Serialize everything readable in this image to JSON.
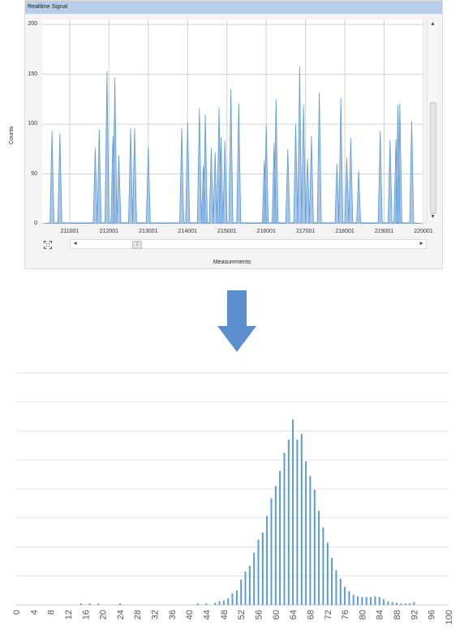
{
  "window": {
    "title": "Realtime Signal"
  },
  "signal_chart": {
    "type": "line",
    "ylabel": "Counts",
    "xlabel": "Measurements",
    "ylim": [
      0,
      205
    ],
    "xlim": [
      210301,
      220001
    ],
    "ytick_labels": [
      "0",
      "50",
      "100",
      "150",
      "200"
    ],
    "xtick_labels": [
      "211001",
      "212001",
      "213001",
      "214001",
      "215001",
      "216001",
      "217001",
      "218001",
      "219001",
      "220001"
    ],
    "grid": true,
    "color": "#5b9bd5",
    "spikes": [
      {
        "x": 210551,
        "y": 93
      },
      {
        "x": 210751,
        "y": 91
      },
      {
        "x": 211651,
        "y": 76
      },
      {
        "x": 211751,
        "y": 95
      },
      {
        "x": 211951,
        "y": 153
      },
      {
        "x": 212101,
        "y": 88
      },
      {
        "x": 212151,
        "y": 147
      },
      {
        "x": 212251,
        "y": 69
      },
      {
        "x": 212551,
        "y": 96
      },
      {
        "x": 212651,
        "y": 96
      },
      {
        "x": 213001,
        "y": 77
      },
      {
        "x": 213851,
        "y": 96
      },
      {
        "x": 214001,
        "y": 102
      },
      {
        "x": 214301,
        "y": 116
      },
      {
        "x": 214401,
        "y": 58
      },
      {
        "x": 214451,
        "y": 110
      },
      {
        "x": 214601,
        "y": 76
      },
      {
        "x": 214701,
        "y": 72
      },
      {
        "x": 214801,
        "y": 117
      },
      {
        "x": 214851,
        "y": 87
      },
      {
        "x": 214951,
        "y": 83
      },
      {
        "x": 215101,
        "y": 135
      },
      {
        "x": 215301,
        "y": 121
      },
      {
        "x": 215951,
        "y": 64
      },
      {
        "x": 216001,
        "y": 99
      },
      {
        "x": 216201,
        "y": 81
      },
      {
        "x": 216251,
        "y": 125
      },
      {
        "x": 216551,
        "y": 75
      },
      {
        "x": 216751,
        "y": 100
      },
      {
        "x": 216851,
        "y": 158
      },
      {
        "x": 216951,
        "y": 119
      },
      {
        "x": 217051,
        "y": 65
      },
      {
        "x": 217151,
        "y": 88
      },
      {
        "x": 217351,
        "y": 132
      },
      {
        "x": 217801,
        "y": 60
      },
      {
        "x": 217901,
        "y": 126
      },
      {
        "x": 218051,
        "y": 66
      },
      {
        "x": 218151,
        "y": 86
      },
      {
        "x": 218351,
        "y": 53
      },
      {
        "x": 218901,
        "y": 93
      },
      {
        "x": 219151,
        "y": 84
      },
      {
        "x": 219301,
        "y": 85
      },
      {
        "x": 219351,
        "y": 119
      },
      {
        "x": 219401,
        "y": 121
      },
      {
        "x": 219701,
        "y": 103
      }
    ]
  },
  "histogram": {
    "type": "bar",
    "color": "#5b9bd5",
    "xtick_labels": [
      "0",
      "4",
      "8",
      "12",
      "16",
      "20",
      "24",
      "28",
      "32",
      "36",
      "40",
      "44",
      "48",
      "52",
      "56",
      "60",
      "64",
      "68",
      "72",
      "76",
      "80",
      "84",
      "88",
      "92",
      "96",
      "100"
    ],
    "grid": true,
    "gridlines": 8,
    "bins": [
      0,
      1,
      2,
      3,
      4,
      5,
      6,
      7,
      8,
      9,
      10,
      11,
      12,
      13,
      14,
      15,
      16,
      17,
      18,
      19,
      20,
      21,
      22,
      23,
      24,
      25,
      26,
      27,
      28,
      29,
      30,
      31,
      32,
      33,
      34,
      35,
      36,
      37,
      38,
      39,
      40,
      41,
      42,
      43,
      44,
      45,
      46,
      47,
      48,
      49,
      50,
      51,
      52,
      53,
      54,
      55,
      56,
      57,
      58,
      59,
      60,
      61,
      62,
      63,
      64,
      65,
      66,
      67,
      68,
      69,
      70,
      71,
      72,
      73,
      74,
      75,
      76,
      77,
      78,
      79,
      80,
      81,
      82,
      83,
      84,
      85,
      86,
      87,
      88,
      89,
      90,
      91,
      92,
      93,
      94,
      95,
      96,
      97,
      98,
      99,
      100
    ],
    "values": [
      0,
      0,
      0,
      0,
      0,
      0,
      0,
      0,
      0,
      0,
      0,
      0,
      0,
      0,
      0,
      0.2,
      0,
      0.2,
      0,
      0.2,
      0,
      0,
      0,
      0,
      0.2,
      0,
      0,
      0,
      0,
      0,
      0,
      0,
      0,
      0,
      0,
      0,
      0,
      0,
      0,
      0,
      0,
      0,
      0.2,
      0,
      0.2,
      0,
      0.3,
      0.5,
      0.6,
      0.9,
      1.6,
      2.0,
      3.5,
      4.6,
      5.4,
      7.2,
      9.0,
      10.0,
      12.3,
      14.7,
      16.4,
      18.5,
      21.0,
      22.8,
      25.6,
      22.8,
      23.6,
      19.8,
      17.8,
      15.9,
      13.0,
      10.7,
      8.6,
      6.5,
      4.8,
      3.6,
      2.5,
      1.9,
      1.4,
      1.2,
      1.1,
      1.1,
      1.1,
      1.2,
      1.1,
      0.8,
      0.5,
      0.4,
      0.3,
      0.2,
      0.2,
      0.2,
      0.4,
      0,
      0,
      0,
      0,
      0,
      0,
      0,
      0
    ],
    "ylim": [
      0,
      32
    ]
  }
}
